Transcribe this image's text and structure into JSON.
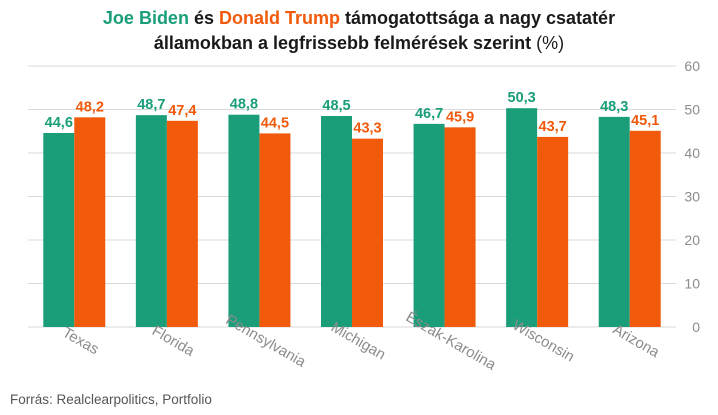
{
  "title": {
    "biden": "Joe Biden",
    "connector": " és ",
    "trump": "Donald Trump",
    "line1_rest": " támogatottsága a nagy csatatér",
    "line2": "államokban a legfrissebb felmérések szerint",
    "unit": "(%)"
  },
  "footer": {
    "source": "Forrás: Realclearpolitics, Portfolio"
  },
  "colors": {
    "biden": "#1a9e7a",
    "trump": "#f05a0a",
    "grid": "#d9d9d9",
    "axis_text": "#8c8c8c"
  },
  "chart_data": {
    "type": "bar",
    "categories": [
      "Texas",
      "Florida",
      "Pennsylvania",
      "Michigan",
      "Észak-Karolina",
      "Wisconsin",
      "Arizona"
    ],
    "series": [
      {
        "key": "biden",
        "values": [
          44.6,
          48.7,
          48.8,
          48.5,
          46.7,
          50.3,
          48.3
        ]
      },
      {
        "key": "trump",
        "values": [
          48.2,
          47.4,
          44.5,
          43.3,
          45.9,
          43.7,
          45.1
        ]
      }
    ],
    "value_labels": {
      "biden": [
        "44,6",
        "48,7",
        "48,8",
        "48,5",
        "46,7",
        "50,3",
        "48,3"
      ],
      "trump": [
        "48,2",
        "47,4",
        "44,5",
        "43,3",
        "45,9",
        "43,7",
        "45,1"
      ]
    },
    "y_ticks": [
      0,
      10,
      20,
      30,
      40,
      50,
      60
    ],
    "ylim": [
      0,
      60
    ],
    "grid": true,
    "y_axis_side": "right"
  }
}
